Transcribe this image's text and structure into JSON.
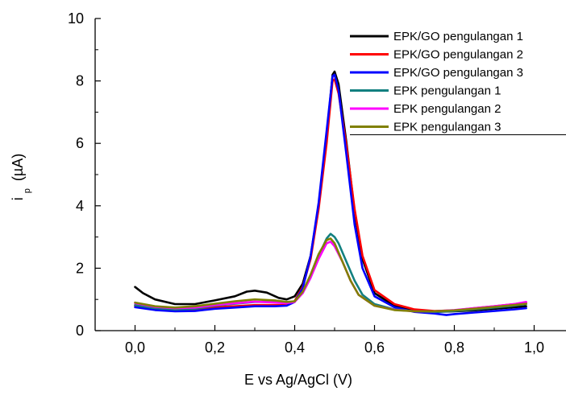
{
  "chart_data": {
    "type": "line",
    "title": "",
    "xlabel": "E vs Ag/AgCl (V)",
    "ylabel_main": "i",
    "ylabel_sub": "p",
    "ylabel_unit": "(µA)",
    "xlim": [
      -0.1,
      1.1
    ],
    "ylim": [
      0,
      10
    ],
    "xticks": [
      0.0,
      0.2,
      0.4,
      0.6,
      0.8,
      1.0
    ],
    "xtick_labels": [
      "0,0",
      "0,2",
      "0,4",
      "0,6",
      "0,8",
      "1,0"
    ],
    "yticks": [
      0,
      2,
      4,
      6,
      8,
      10
    ],
    "ytick_labels": [
      "0",
      "2",
      "4",
      "6",
      "8",
      "10"
    ],
    "grid": false,
    "legend_position": "top-right",
    "series": [
      {
        "name": "EPK/GO pengulangan 1",
        "color": "#000000",
        "points": [
          [
            0.0,
            1.4
          ],
          [
            0.02,
            1.2
          ],
          [
            0.05,
            1.0
          ],
          [
            0.1,
            0.85
          ],
          [
            0.15,
            0.85
          ],
          [
            0.2,
            0.97
          ],
          [
            0.25,
            1.1
          ],
          [
            0.28,
            1.25
          ],
          [
            0.3,
            1.28
          ],
          [
            0.33,
            1.22
          ],
          [
            0.36,
            1.05
          ],
          [
            0.38,
            1.0
          ],
          [
            0.4,
            1.1
          ],
          [
            0.42,
            1.5
          ],
          [
            0.44,
            2.4
          ],
          [
            0.46,
            4.0
          ],
          [
            0.48,
            6.2
          ],
          [
            0.495,
            8.2
          ],
          [
            0.5,
            8.3
          ],
          [
            0.51,
            7.9
          ],
          [
            0.53,
            6.0
          ],
          [
            0.55,
            3.8
          ],
          [
            0.57,
            2.3
          ],
          [
            0.6,
            1.2
          ],
          [
            0.65,
            0.8
          ],
          [
            0.7,
            0.65
          ],
          [
            0.75,
            0.6
          ],
          [
            0.8,
            0.62
          ],
          [
            0.85,
            0.65
          ],
          [
            0.9,
            0.7
          ],
          [
            0.95,
            0.75
          ],
          [
            0.98,
            0.78
          ]
        ]
      },
      {
        "name": "EPK/GO pengulangan 2",
        "color": "#ff0000",
        "points": [
          [
            0.0,
            0.8
          ],
          [
            0.05,
            0.72
          ],
          [
            0.1,
            0.68
          ],
          [
            0.15,
            0.68
          ],
          [
            0.2,
            0.75
          ],
          [
            0.25,
            0.78
          ],
          [
            0.3,
            0.82
          ],
          [
            0.35,
            0.82
          ],
          [
            0.38,
            0.82
          ],
          [
            0.4,
            0.95
          ],
          [
            0.42,
            1.4
          ],
          [
            0.44,
            2.3
          ],
          [
            0.46,
            3.9
          ],
          [
            0.48,
            6.0
          ],
          [
            0.495,
            8.0
          ],
          [
            0.5,
            8.05
          ],
          [
            0.51,
            7.6
          ],
          [
            0.53,
            5.9
          ],
          [
            0.55,
            3.9
          ],
          [
            0.57,
            2.4
          ],
          [
            0.6,
            1.3
          ],
          [
            0.65,
            0.85
          ],
          [
            0.7,
            0.68
          ],
          [
            0.75,
            0.63
          ],
          [
            0.8,
            0.65
          ],
          [
            0.85,
            0.72
          ],
          [
            0.9,
            0.78
          ],
          [
            0.95,
            0.85
          ],
          [
            0.98,
            0.9
          ]
        ]
      },
      {
        "name": "EPK/GO pengulangan 3",
        "color": "#0000ff",
        "points": [
          [
            0.0,
            0.75
          ],
          [
            0.05,
            0.66
          ],
          [
            0.1,
            0.62
          ],
          [
            0.15,
            0.63
          ],
          [
            0.2,
            0.7
          ],
          [
            0.25,
            0.74
          ],
          [
            0.3,
            0.78
          ],
          [
            0.35,
            0.78
          ],
          [
            0.38,
            0.8
          ],
          [
            0.4,
            0.92
          ],
          [
            0.42,
            1.35
          ],
          [
            0.44,
            2.4
          ],
          [
            0.46,
            4.1
          ],
          [
            0.48,
            6.4
          ],
          [
            0.495,
            8.15
          ],
          [
            0.5,
            8.2
          ],
          [
            0.51,
            7.7
          ],
          [
            0.53,
            5.6
          ],
          [
            0.55,
            3.4
          ],
          [
            0.57,
            2.0
          ],
          [
            0.6,
            1.1
          ],
          [
            0.65,
            0.75
          ],
          [
            0.7,
            0.6
          ],
          [
            0.75,
            0.55
          ],
          [
            0.78,
            0.5
          ],
          [
            0.8,
            0.53
          ],
          [
            0.85,
            0.58
          ],
          [
            0.9,
            0.63
          ],
          [
            0.95,
            0.68
          ],
          [
            0.98,
            0.72
          ]
        ]
      },
      {
        "name": "EPK pengulangan 1",
        "color": "#128080",
        "points": [
          [
            0.0,
            0.82
          ],
          [
            0.05,
            0.72
          ],
          [
            0.1,
            0.68
          ],
          [
            0.15,
            0.7
          ],
          [
            0.2,
            0.8
          ],
          [
            0.25,
            0.86
          ],
          [
            0.3,
            0.92
          ],
          [
            0.35,
            0.92
          ],
          [
            0.38,
            0.9
          ],
          [
            0.4,
            0.93
          ],
          [
            0.42,
            1.2
          ],
          [
            0.44,
            1.7
          ],
          [
            0.46,
            2.4
          ],
          [
            0.48,
            2.95
          ],
          [
            0.49,
            3.1
          ],
          [
            0.5,
            3.0
          ],
          [
            0.51,
            2.8
          ],
          [
            0.53,
            2.2
          ],
          [
            0.55,
            1.6
          ],
          [
            0.57,
            1.15
          ],
          [
            0.6,
            0.85
          ],
          [
            0.65,
            0.68
          ],
          [
            0.7,
            0.62
          ],
          [
            0.75,
            0.6
          ],
          [
            0.8,
            0.63
          ],
          [
            0.85,
            0.68
          ],
          [
            0.9,
            0.74
          ],
          [
            0.95,
            0.8
          ],
          [
            0.98,
            0.85
          ]
        ]
      },
      {
        "name": "EPK pengulangan 2",
        "color": "#ff00ff",
        "points": [
          [
            0.0,
            0.88
          ],
          [
            0.05,
            0.76
          ],
          [
            0.1,
            0.72
          ],
          [
            0.15,
            0.74
          ],
          [
            0.2,
            0.82
          ],
          [
            0.25,
            0.88
          ],
          [
            0.3,
            0.93
          ],
          [
            0.35,
            0.9
          ],
          [
            0.38,
            0.88
          ],
          [
            0.4,
            0.92
          ],
          [
            0.42,
            1.2
          ],
          [
            0.44,
            1.7
          ],
          [
            0.46,
            2.3
          ],
          [
            0.48,
            2.8
          ],
          [
            0.49,
            2.85
          ],
          [
            0.5,
            2.7
          ],
          [
            0.52,
            2.2
          ],
          [
            0.54,
            1.6
          ],
          [
            0.56,
            1.15
          ],
          [
            0.6,
            0.8
          ],
          [
            0.65,
            0.67
          ],
          [
            0.7,
            0.62
          ],
          [
            0.75,
            0.62
          ],
          [
            0.8,
            0.66
          ],
          [
            0.85,
            0.72
          ],
          [
            0.9,
            0.78
          ],
          [
            0.95,
            0.85
          ],
          [
            0.98,
            0.92
          ]
        ]
      },
      {
        "name": "EPK pengulangan 3",
        "color": "#808000",
        "points": [
          [
            0.0,
            0.9
          ],
          [
            0.05,
            0.78
          ],
          [
            0.1,
            0.74
          ],
          [
            0.15,
            0.78
          ],
          [
            0.2,
            0.86
          ],
          [
            0.25,
            0.94
          ],
          [
            0.3,
            1.0
          ],
          [
            0.35,
            0.97
          ],
          [
            0.38,
            0.92
          ],
          [
            0.4,
            0.94
          ],
          [
            0.42,
            1.25
          ],
          [
            0.44,
            1.8
          ],
          [
            0.46,
            2.45
          ],
          [
            0.48,
            2.9
          ],
          [
            0.49,
            2.95
          ],
          [
            0.5,
            2.8
          ],
          [
            0.52,
            2.2
          ],
          [
            0.54,
            1.6
          ],
          [
            0.56,
            1.15
          ],
          [
            0.6,
            0.8
          ],
          [
            0.65,
            0.66
          ],
          [
            0.7,
            0.62
          ],
          [
            0.75,
            0.62
          ],
          [
            0.8,
            0.65
          ],
          [
            0.85,
            0.7
          ],
          [
            0.9,
            0.76
          ],
          [
            0.95,
            0.82
          ],
          [
            0.98,
            0.86
          ]
        ]
      }
    ]
  }
}
